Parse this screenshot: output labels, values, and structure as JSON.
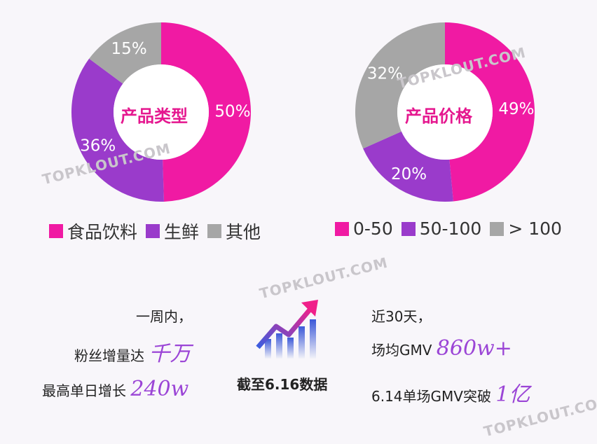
{
  "charts": {
    "chart_data": [
      {
        "type": "pie",
        "title": "产品类型",
        "categories": [
          "食品饮料",
          "生鲜",
          "其他"
        ],
        "values": [
          50,
          36,
          15
        ],
        "labels": [
          "50%",
          "36%",
          "15%"
        ],
        "colors": [
          "#f01aa3",
          "#9a3bcb",
          "#a6a6a6"
        ]
      },
      {
        "type": "pie",
        "title": "产品价格",
        "categories": [
          "0-50",
          "50-100",
          "> 100"
        ],
        "values": [
          49,
          20,
          32
        ],
        "labels": [
          "49%",
          "20%",
          "32%"
        ],
        "colors": [
          "#f01aa3",
          "#9a3bcb",
          "#a6a6a6"
        ]
      }
    ]
  },
  "watermark": "TOPKLOUT.COM",
  "stats": {
    "left_line1": "一周内，",
    "left_line2_prefix": "粉丝增量达",
    "left_line2_value": "千万",
    "left_line3_prefix": "最高单日增长",
    "left_line3_value": "240w",
    "center_label": "截至6.16数据",
    "right_line1": "近30天，",
    "right_line2_prefix": "场均GMV",
    "right_line2_value": "860w+",
    "right_line3_prefix": "6.14单场GMV突破",
    "right_line3_value": "1亿"
  },
  "colors": {
    "pink": "#f01aa3",
    "purple": "#9a3bcb",
    "gray": "#a6a6a6",
    "title_pink": "#e5178f"
  }
}
